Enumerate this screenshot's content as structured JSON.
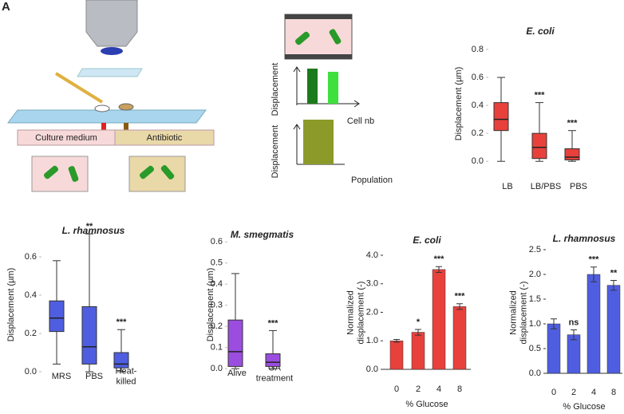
{
  "figure_label": "A",
  "diagram_a": {
    "labels": [
      "Culture medium",
      "Antibiotic"
    ]
  },
  "diagram_b": {
    "y_labels": [
      "Displacement",
      "Displacement"
    ],
    "x_labels": [
      "Cell nb",
      "Population"
    ]
  },
  "chart_data": [
    {
      "type": "box",
      "title": "E. coli",
      "y_label": "Displacement (µm)",
      "color": "#e8413c",
      "categories": [
        "LB",
        "LB/PBS",
        "PBS"
      ],
      "boxes": [
        {
          "min": 0,
          "q1": 0.22,
          "median": 0.3,
          "q3": 0.42,
          "max": 0.6
        },
        {
          "min": 0,
          "q1": 0.02,
          "median": 0.1,
          "q3": 0.2,
          "max": 0.42
        },
        {
          "min": 0,
          "q1": 0.01,
          "median": 0.03,
          "q3": 0.09,
          "max": 0.22
        }
      ],
      "significance": [
        null,
        "***",
        "***"
      ],
      "ylim": [
        -0.05,
        0.8
      ],
      "yticks": [
        {
          "value": 0,
          "label": "0.0"
        },
        0.2,
        0.4,
        0.6,
        0.8
      ]
    },
    {
      "type": "box",
      "title": "L. rhamnosus",
      "y_label": "Displacement (µm)",
      "color": "#4f5ee0",
      "categories": [
        "MRS",
        "PBS",
        "Heat-\nkilled"
      ],
      "boxes": [
        {
          "min": 0.04,
          "q1": 0.21,
          "median": 0.28,
          "q3": 0.37,
          "max": 0.58
        },
        {
          "min": 0,
          "q1": 0.04,
          "median": 0.13,
          "q3": 0.34,
          "max": 0.72
        },
        {
          "min": 0,
          "q1": 0.02,
          "median": 0.04,
          "q3": 0.1,
          "max": 0.22
        }
      ],
      "significance": [
        null,
        "**",
        "***"
      ],
      "ylim": [
        -0.05,
        0.75
      ],
      "yticks": [
        {
          "value": 0,
          "label": "0.0"
        },
        0.2,
        0.4,
        0.6
      ]
    },
    {
      "type": "box",
      "title": "M. smegmatis",
      "y_label": "Displacement (µm)",
      "color": "#9b4de0",
      "categories": [
        "Alive",
        "GA\ntreatment"
      ],
      "boxes": [
        {
          "min": 0,
          "q1": 0.01,
          "median": 0.08,
          "q3": 0.23,
          "max": 0.45
        },
        {
          "min": 0,
          "q1": 0.01,
          "median": 0.03,
          "q3": 0.07,
          "max": 0.18
        }
      ],
      "significance": [
        null,
        "***"
      ],
      "ylim": [
        -0.03,
        0.65
      ],
      "yticks": [
        {
          "value": 0,
          "label": "0.0"
        },
        0.1,
        0.2,
        0.3,
        0.4,
        0.5,
        0.6
      ]
    },
    {
      "type": "bar",
      "title": "E. coli",
      "y_label": "Normalized\ndisplacement (-)",
      "x_label": "% Glucose",
      "color": "#e8413c",
      "categories": [
        "0",
        "2",
        "4",
        "8"
      ],
      "values": [
        1.0,
        1.3,
        3.5,
        2.2
      ],
      "errors": [
        0.05,
        0.1,
        0.1,
        0.1
      ],
      "significance": [
        null,
        "*",
        "***",
        "***"
      ],
      "ylim": [
        0,
        4.0
      ],
      "yticks": [
        {
          "value": 0,
          "label": "0.0"
        },
        {
          "value": 1,
          "label": "1.0"
        },
        {
          "value": 2,
          "label": "2.0"
        },
        {
          "value": 3,
          "label": "3.0"
        },
        {
          "value": 4,
          "label": "4.0"
        }
      ]
    },
    {
      "type": "bar",
      "title": "L. rhamnosus",
      "y_label": "Normalized\ndisplacement (-)",
      "x_label": "% Glucose",
      "color": "#4f5ee0",
      "categories": [
        "0",
        "2",
        "4",
        "8"
      ],
      "values": [
        1.0,
        0.78,
        2.0,
        1.78
      ],
      "errors": [
        0.1,
        0.1,
        0.15,
        0.1
      ],
      "significance": [
        null,
        "ns",
        "***",
        "**"
      ],
      "ylim": [
        0,
        2.5
      ],
      "yticks": [
        {
          "value": 0,
          "label": "0.0"
        },
        0.5,
        {
          "value": 1,
          "label": "1.0"
        },
        1.5,
        {
          "value": 2,
          "label": "2.0"
        },
        2.5
      ]
    }
  ]
}
